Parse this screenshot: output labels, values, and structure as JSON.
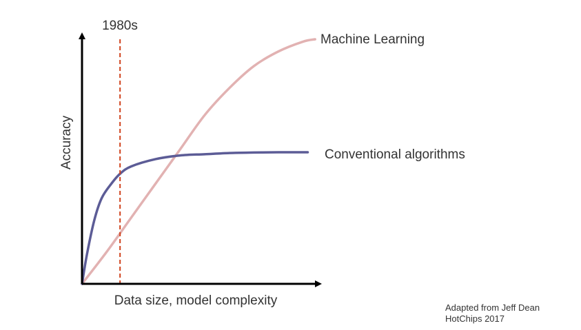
{
  "chart_data": {
    "type": "line",
    "xlabel": "Data size, model complexity",
    "ylabel": "Accuracy",
    "marker": {
      "label": "1980s",
      "x": 0.155,
      "color": "#d0421c"
    },
    "series": [
      {
        "name": "Machine Learning",
        "color": "#e2b2b2",
        "points": [
          [
            0,
            0
          ],
          [
            0.1,
            0.13
          ],
          [
            0.2,
            0.27
          ],
          [
            0.3,
            0.41
          ],
          [
            0.4,
            0.55
          ],
          [
            0.5,
            0.69
          ],
          [
            0.6,
            0.8
          ],
          [
            0.7,
            0.89
          ],
          [
            0.8,
            0.95
          ],
          [
            0.9,
            0.99
          ],
          [
            0.95,
            1.0
          ]
        ]
      },
      {
        "name": "Conventional algorithms",
        "color": "#5c5c96",
        "points": [
          [
            0,
            0
          ],
          [
            0.02,
            0.12
          ],
          [
            0.05,
            0.26
          ],
          [
            0.08,
            0.35
          ],
          [
            0.12,
            0.41
          ],
          [
            0.155,
            0.45
          ],
          [
            0.2,
            0.48
          ],
          [
            0.3,
            0.51
          ],
          [
            0.4,
            0.525
          ],
          [
            0.5,
            0.53
          ],
          [
            0.6,
            0.535
          ],
          [
            0.7,
            0.537
          ],
          [
            0.8,
            0.538
          ],
          [
            0.92,
            0.538
          ]
        ]
      }
    ]
  },
  "credit": {
    "line1": "Adapted from Jeff Dean",
    "line2": "HotChips 2017"
  }
}
